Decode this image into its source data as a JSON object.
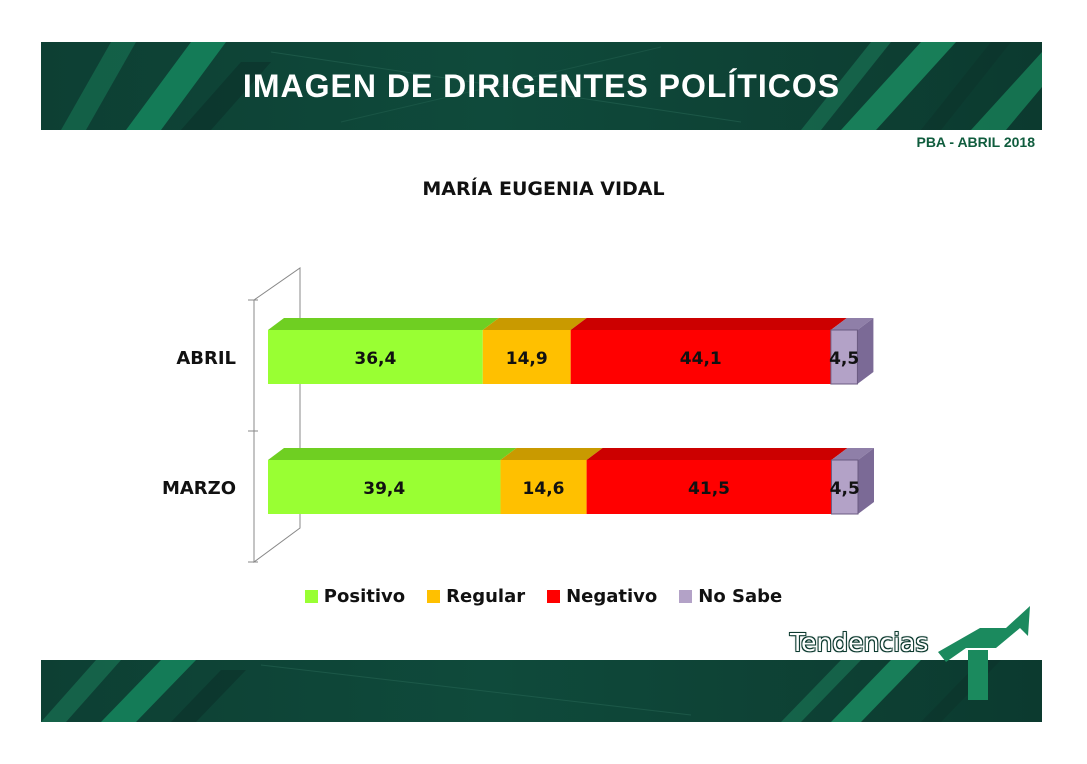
{
  "header": {
    "title": "IMAGEN DE DIRIGENTES POLÍTICOS"
  },
  "subtitle": "PBA - ABRIL 2018",
  "brand": {
    "name": "Tendencias"
  },
  "colors": {
    "positivo": "#99ff33",
    "regular": "#ffc000",
    "negativo": "#ff0000",
    "nosabe": "#b3a2c7",
    "band": "#0f4a3b",
    "accent": "#1b8a5e"
  },
  "chart_data": {
    "type": "bar",
    "stacked": true,
    "orientation": "horizontal",
    "title": "MARÍA EUGENIA VIDAL",
    "categories": [
      "ABRIL",
      "MARZO"
    ],
    "series": [
      {
        "name": "Positivo",
        "values": [
          36.4,
          39.4
        ],
        "labels": [
          "36,4",
          "39,4"
        ]
      },
      {
        "name": "Regular",
        "values": [
          14.9,
          14.6
        ],
        "labels": [
          "14,9",
          "14,6"
        ]
      },
      {
        "name": "Negativo",
        "values": [
          44.1,
          41.5
        ],
        "labels": [
          "44,1",
          "41,5"
        ]
      },
      {
        "name": "No Sabe",
        "values": [
          4.5,
          4.5
        ],
        "labels": [
          "4,5",
          "4,5"
        ]
      }
    ],
    "xlim": [
      0,
      100
    ],
    "legend": "bottom",
    "grid": false
  }
}
